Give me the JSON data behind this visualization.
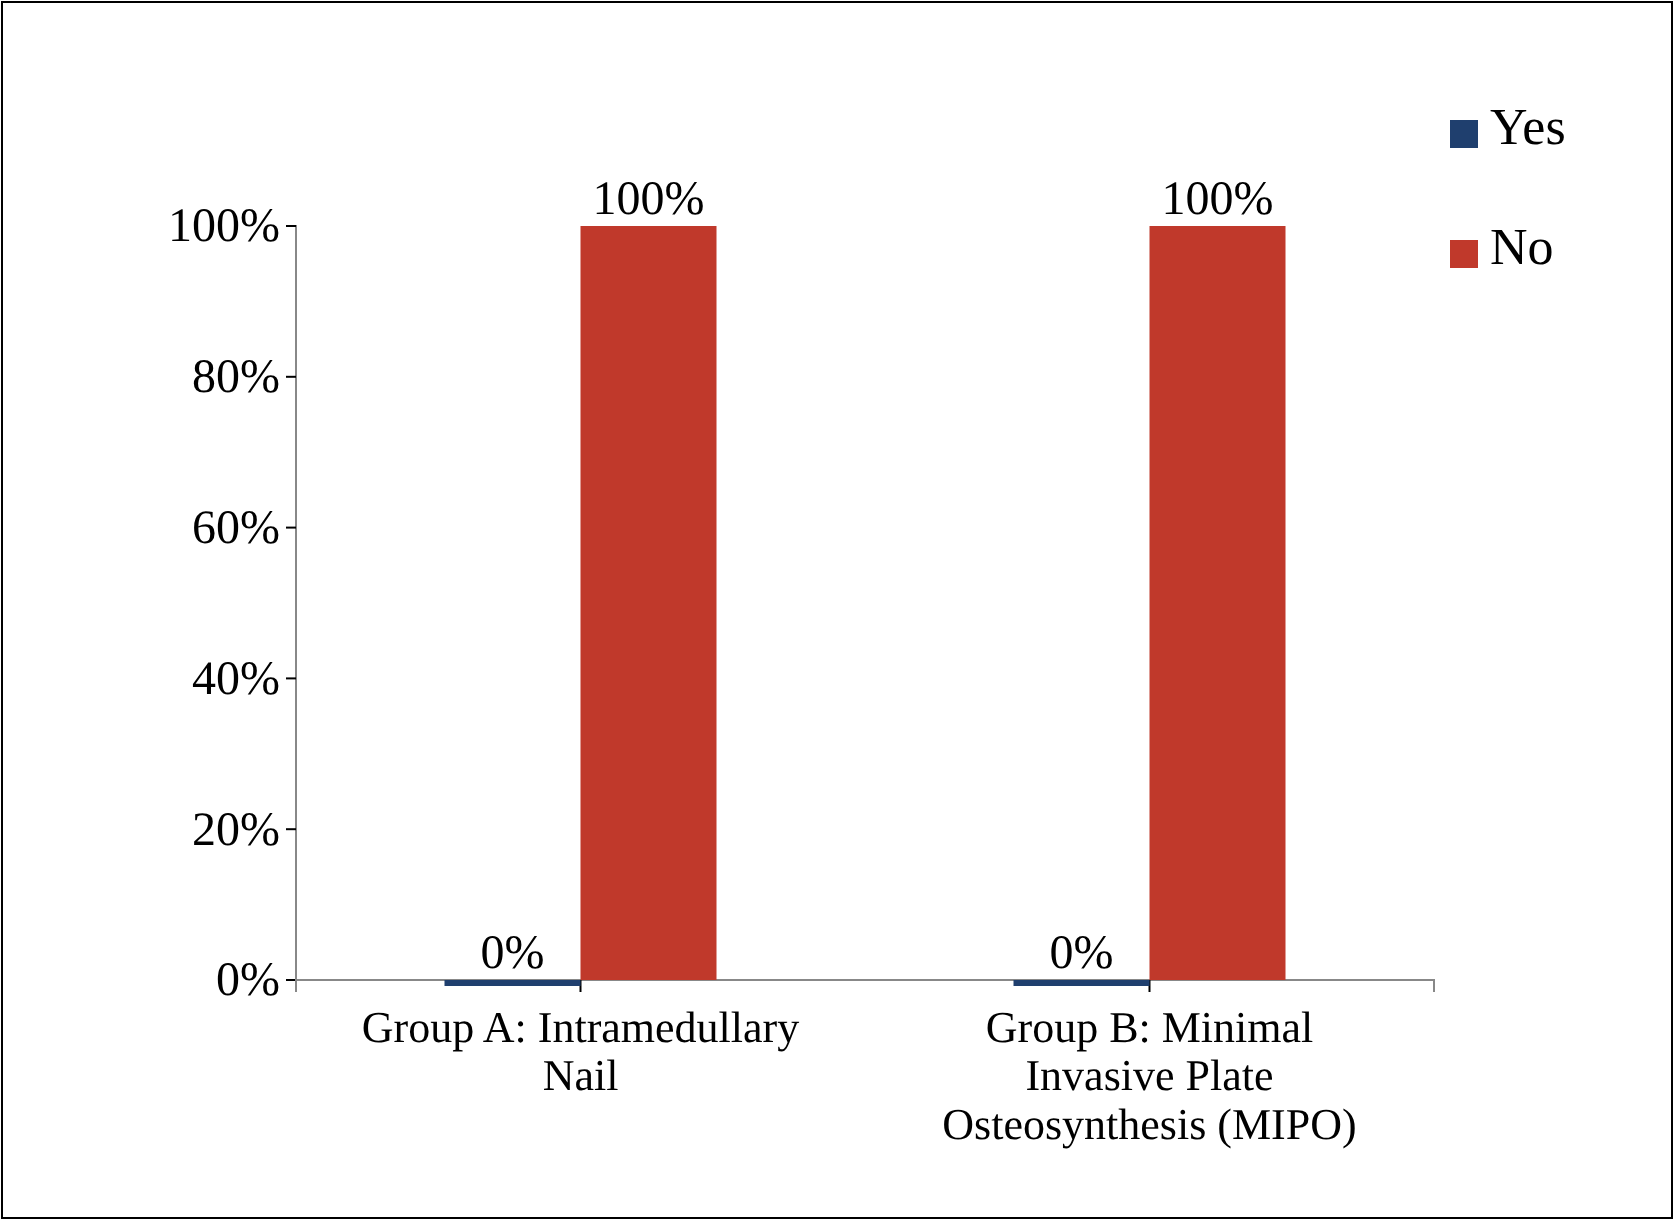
{
  "chart_data": {
    "type": "bar",
    "categories": [
      "Group A: Intramedullary Nail",
      "Group B: Minimal Invasive Plate Osteosynthesis (MIPO)"
    ],
    "series": [
      {
        "name": "Yes",
        "color": "#1f3f6e",
        "values": [
          0,
          0
        ],
        "value_labels": [
          "0%",
          "0%"
        ]
      },
      {
        "name": "No",
        "color": "#c0392b",
        "values": [
          100,
          100
        ],
        "value_labels": [
          "100%",
          "100%"
        ]
      }
    ],
    "ylim": [
      0,
      100
    ],
    "yticks": [
      {
        "value": 0,
        "label": "0%"
      },
      {
        "value": 20,
        "label": "20%"
      },
      {
        "value": 40,
        "label": "40%"
      },
      {
        "value": 60,
        "label": "60%"
      },
      {
        "value": 80,
        "label": "80%"
      },
      {
        "value": 100,
        "label": "100%"
      }
    ],
    "grid": false,
    "legend": "top right"
  }
}
